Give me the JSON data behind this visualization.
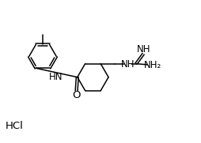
{
  "background_color": "#ffffff",
  "line_color": "#000000",
  "font_size": 8.5,
  "hcl_font_size": 9.5,
  "figsize": [
    2.54,
    1.81
  ],
  "dpi": 100,
  "xlim": [
    0,
    10.5
  ],
  "ylim": [
    0,
    7.5
  ]
}
